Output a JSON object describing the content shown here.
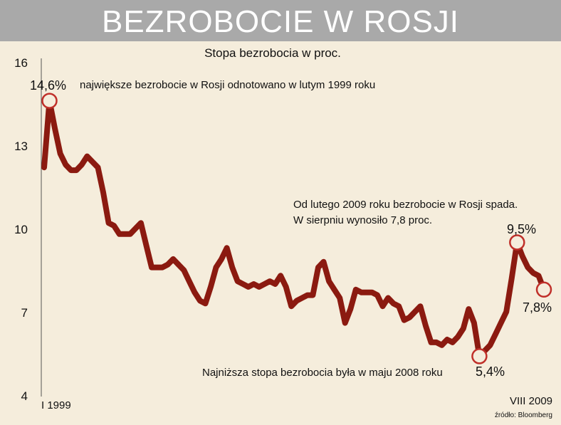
{
  "header": {
    "title": "BEZROBOCIE W ROSJI"
  },
  "source": "źródło: Bloomberg",
  "colors": {
    "line": "#8b1a10",
    "marker": "#c0302a",
    "banner": "#a9a9a9",
    "background": "#f5eddc"
  },
  "chart_data": {
    "type": "line",
    "title": "Stopa bezrobocia w proc.",
    "xlabel": "",
    "ylabel": "",
    "x_start_label": "I 1999",
    "x_end_label": "VIII 2009",
    "ylim": [
      4,
      16
    ],
    "yticks": [
      4,
      7,
      10,
      13,
      16
    ],
    "grid": false,
    "series": [
      {
        "name": "",
        "values": [
          12.2,
          14.6,
          13.6,
          12.7,
          12.3,
          12.1,
          12.1,
          12.3,
          12.6,
          12.4,
          12.2,
          11.3,
          10.2,
          10.1,
          9.8,
          9.8,
          9.8,
          10.0,
          10.2,
          9.4,
          8.6,
          8.6,
          8.6,
          8.7,
          8.9,
          8.7,
          8.5,
          8.1,
          7.7,
          7.4,
          7.3,
          7.9,
          8.6,
          8.9,
          9.3,
          8.6,
          8.1,
          8.0,
          7.9,
          8.0,
          7.9,
          8.0,
          8.1,
          8.0,
          8.3,
          7.9,
          7.2,
          7.4,
          7.5,
          7.6,
          7.6,
          8.6,
          8.8,
          8.1,
          7.8,
          7.5,
          6.6,
          7.1,
          7.8,
          7.7,
          7.7,
          7.7,
          7.6,
          7.2,
          7.5,
          7.3,
          7.2,
          6.7,
          6.8,
          7.0,
          7.2,
          6.5,
          5.9,
          5.9,
          5.8,
          6.0,
          5.9,
          6.1,
          6.4,
          7.1,
          6.6,
          5.4,
          5.6,
          5.8,
          6.2,
          6.6,
          7.0,
          8.2,
          9.5,
          9.0,
          8.6,
          8.4,
          8.3,
          7.8
        ]
      }
    ],
    "annotations": [
      {
        "id": "max",
        "value_label": "14,6%",
        "text": "największe bezrobocie w Rosji odnotowano w lutym 1999 roku"
      },
      {
        "id": "min",
        "value_label": "5,4%",
        "text": "Najniższa stopa bezrobocia była w maju 2008 roku"
      },
      {
        "id": "peak2009",
        "value_label": "9,5%",
        "text_lines": [
          "Od lutego 2009 roku bezrobocie w Rosji spada.",
          "W sierpniu wynosiło 7,8 proc."
        ]
      },
      {
        "id": "last",
        "value_label": "7,8%"
      }
    ]
  }
}
